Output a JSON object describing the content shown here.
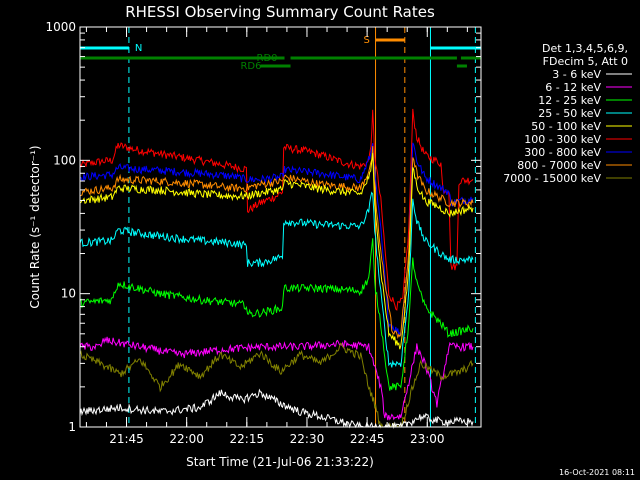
{
  "chart_data": {
    "type": "line",
    "title": "RHESSI Observing Summary Count Rates",
    "xlabel": "Start Time (21-Jul-06 21:33:22)",
    "ylabel": "Count Rate (s⁻¹ detector⁻¹)",
    "y_scale": "log",
    "ylim": [
      1,
      1000
    ],
    "xlim_minutes": [
      0,
      100
    ],
    "x_ticks": [
      {
        "label": "21:45",
        "minute": 11.6
      },
      {
        "label": "22:00",
        "minute": 26.6
      },
      {
        "label": "22:15",
        "minute": 41.6
      },
      {
        "label": "22:30",
        "minute": 56.6
      },
      {
        "label": "22:45",
        "minute": 71.6
      },
      {
        "label": "23:00",
        "minute": 86.6
      }
    ],
    "y_ticks": [
      {
        "label": "1",
        "value": 1
      },
      {
        "label": "10",
        "value": 10
      },
      {
        "label": "100",
        "value": 100
      },
      {
        "label": "1000",
        "value": 1000
      }
    ],
    "legend": {
      "placement": "right",
      "header": [
        "Det 1,3,4,5,6,9,",
        "FDecim 5, Att 0"
      ],
      "entries": [
        {
          "name": "3 - 6 keV",
          "color": "#ffffff"
        },
        {
          "name": "6 - 12 keV",
          "color": "#ff00ff"
        },
        {
          "name": "12 - 25 keV",
          "color": "#00ff00"
        },
        {
          "name": "25 - 50 keV",
          "color": "#00ffff"
        },
        {
          "name": "50 - 100 keV",
          "color": "#ffff00"
        },
        {
          "name": "100 - 300 keV",
          "color": "#ff0000"
        },
        {
          "name": "300 - 800 keV",
          "color": "#0000ff"
        },
        {
          "name": "800 - 7000 keV",
          "color": "#ff8c00"
        },
        {
          "name": "7000 - 15000 keV",
          "color": "#808000"
        }
      ]
    },
    "series": [
      {
        "name": "100 - 300 keV",
        "color": "#ff0000",
        "points": [
          [
            0,
            92
          ],
          [
            5,
            98
          ],
          [
            8,
            100
          ],
          [
            9.5,
            130
          ],
          [
            13,
            122
          ],
          [
            20,
            112
          ],
          [
            30,
            100
          ],
          [
            38,
            90
          ],
          [
            41.5,
            86
          ],
          [
            41.8,
            42
          ],
          [
            45,
            48
          ],
          [
            49,
            54
          ],
          [
            50.5,
            58
          ],
          [
            50.8,
            125
          ],
          [
            56,
            118
          ],
          [
            60,
            110
          ],
          [
            66,
            96
          ],
          [
            70,
            90
          ],
          [
            72,
            98
          ],
          [
            72.8,
            160
          ],
          [
            73,
            230
          ],
          [
            73.5,
            110
          ],
          [
            75,
            50
          ],
          [
            77,
            10
          ],
          [
            79,
            8
          ],
          [
            80.5,
            9
          ],
          [
            82,
            30
          ],
          [
            83,
            230
          ],
          [
            84,
            150
          ],
          [
            86,
            110
          ],
          [
            90,
            95
          ],
          [
            90.5,
            60
          ],
          [
            92,
            60
          ],
          [
            92.5,
            16
          ],
          [
            94,
            16
          ],
          [
            94.5,
            70
          ],
          [
            98,
            72
          ]
        ]
      },
      {
        "name": "300 - 800 keV",
        "color": "#0000ff",
        "points": [
          [
            0,
            75
          ],
          [
            8,
            78
          ],
          [
            9.5,
            88
          ],
          [
            20,
            84
          ],
          [
            30,
            80
          ],
          [
            38,
            76
          ],
          [
            41.5,
            72
          ],
          [
            45,
            72
          ],
          [
            50.5,
            75
          ],
          [
            51,
            85
          ],
          [
            60,
            80
          ],
          [
            70,
            72
          ],
          [
            72.5,
            110
          ],
          [
            73,
            140
          ],
          [
            73.5,
            80
          ],
          [
            75,
            30
          ],
          [
            77,
            6
          ],
          [
            80,
            5
          ],
          [
            82,
            20
          ],
          [
            83,
            140
          ],
          [
            84,
            100
          ],
          [
            86,
            75
          ],
          [
            90,
            62
          ],
          [
            92,
            58
          ],
          [
            92.5,
            48
          ],
          [
            98,
            52
          ]
        ]
      },
      {
        "name": "800 - 7000 keV",
        "color": "#ff8c00",
        "points": [
          [
            0,
            58
          ],
          [
            8,
            62
          ],
          [
            9.5,
            72
          ],
          [
            20,
            70
          ],
          [
            30,
            66
          ],
          [
            38,
            62
          ],
          [
            41.5,
            62
          ],
          [
            45,
            66
          ],
          [
            50.5,
            70
          ],
          [
            51,
            75
          ],
          [
            60,
            66
          ],
          [
            70,
            62
          ],
          [
            72.5,
            90
          ],
          [
            73,
            120
          ],
          [
            73.5,
            60
          ],
          [
            75,
            20
          ],
          [
            78,
            5
          ],
          [
            80,
            5
          ],
          [
            82,
            20
          ],
          [
            83,
            110
          ],
          [
            84,
            80
          ],
          [
            86,
            60
          ],
          [
            90,
            52
          ],
          [
            92,
            48
          ],
          [
            98,
            48
          ]
        ]
      },
      {
        "name": "50 - 100 keV",
        "color": "#ffff00",
        "points": [
          [
            0,
            50
          ],
          [
            8,
            53
          ],
          [
            9.5,
            62
          ],
          [
            20,
            60
          ],
          [
            30,
            56
          ],
          [
            38,
            54
          ],
          [
            41.5,
            54
          ],
          [
            45,
            57
          ],
          [
            50.5,
            61
          ],
          [
            51,
            68
          ],
          [
            60,
            61
          ],
          [
            70,
            56
          ],
          [
            72.5,
            80
          ],
          [
            73,
            110
          ],
          [
            73.5,
            50
          ],
          [
            75,
            15
          ],
          [
            77,
            5
          ],
          [
            80,
            4
          ],
          [
            82,
            15
          ],
          [
            83,
            90
          ],
          [
            84,
            65
          ],
          [
            86,
            50
          ],
          [
            90,
            44
          ],
          [
            92,
            40
          ],
          [
            98,
            44
          ]
        ]
      },
      {
        "name": "25 - 50 keV",
        "color": "#00ffff",
        "points": [
          [
            0,
            24
          ],
          [
            8,
            25
          ],
          [
            9.5,
            30
          ],
          [
            20,
            27
          ],
          [
            30,
            25
          ],
          [
            38,
            24
          ],
          [
            41.5,
            23
          ],
          [
            41.8,
            17
          ],
          [
            45,
            17
          ],
          [
            50.5,
            19
          ],
          [
            50.8,
            35
          ],
          [
            60,
            33
          ],
          [
            70,
            32
          ],
          [
            72,
            42
          ],
          [
            73,
            60
          ],
          [
            73.5,
            30
          ],
          [
            75,
            10
          ],
          [
            77,
            3
          ],
          [
            80,
            3
          ],
          [
            82,
            10
          ],
          [
            83,
            52
          ],
          [
            84,
            35
          ],
          [
            86,
            25
          ],
          [
            90,
            20
          ],
          [
            92,
            18
          ],
          [
            98,
            18
          ]
        ]
      },
      {
        "name": "12 - 25 keV",
        "color": "#00ff00",
        "points": [
          [
            0,
            8.5
          ],
          [
            8,
            9
          ],
          [
            9.5,
            12
          ],
          [
            20,
            10
          ],
          [
            30,
            9
          ],
          [
            38,
            8.5
          ],
          [
            41.5,
            8.2
          ],
          [
            41.8,
            7
          ],
          [
            45,
            7.2
          ],
          [
            50.5,
            7.8
          ],
          [
            50.8,
            11
          ],
          [
            60,
            11
          ],
          [
            70,
            10.5
          ],
          [
            72,
            13
          ],
          [
            73,
            25
          ],
          [
            73.5,
            12
          ],
          [
            75,
            6
          ],
          [
            77,
            2
          ],
          [
            80,
            2
          ],
          [
            82,
            6
          ],
          [
            83,
            18
          ],
          [
            84,
            12
          ],
          [
            86,
            8
          ],
          [
            90,
            6
          ],
          [
            92,
            5
          ],
          [
            98,
            5.5
          ]
        ]
      },
      {
        "name": "6 - 12 keV",
        "color": "#ff00ff",
        "points": [
          [
            0,
            4
          ],
          [
            5,
            4
          ],
          [
            6,
            4.5
          ],
          [
            15,
            4
          ],
          [
            25,
            3.5
          ],
          [
            35,
            3.8
          ],
          [
            45,
            4
          ],
          [
            55,
            4
          ],
          [
            65,
            4.2
          ],
          [
            72,
            4
          ],
          [
            75,
            2
          ],
          [
            76,
            1.2
          ],
          [
            80,
            1.2
          ],
          [
            84,
            4
          ],
          [
            86,
            3
          ],
          [
            89,
            1.5
          ],
          [
            92,
            4
          ],
          [
            98,
            4
          ]
        ]
      },
      {
        "name": "7000 - 15000 keV",
        "color": "#808000",
        "points": [
          [
            0,
            3.5
          ],
          [
            5,
            3
          ],
          [
            10,
            2.5
          ],
          [
            15,
            3.2
          ],
          [
            20,
            2
          ],
          [
            25,
            3
          ],
          [
            30,
            2.4
          ],
          [
            35,
            3.5
          ],
          [
            40,
            2.8
          ],
          [
            45,
            3.6
          ],
          [
            50,
            2.6
          ],
          [
            55,
            3.5
          ],
          [
            60,
            3
          ],
          [
            65,
            4
          ],
          [
            70,
            3.4
          ],
          [
            72,
            2
          ],
          [
            73.5,
            1.5
          ],
          [
            75,
            1
          ],
          [
            80,
            1
          ],
          [
            83,
            2
          ],
          [
            85,
            3
          ],
          [
            90,
            2.4
          ],
          [
            95,
            2.6
          ],
          [
            98,
            3
          ]
        ]
      },
      {
        "name": "3 - 6 keV",
        "color": "#ffffff",
        "points": [
          [
            0,
            1.3
          ],
          [
            10,
            1.4
          ],
          [
            20,
            1.3
          ],
          [
            30,
            1.4
          ],
          [
            35,
            1.8
          ],
          [
            40,
            1.6
          ],
          [
            45,
            1.8
          ],
          [
            50,
            1.5
          ],
          [
            55,
            1.3
          ],
          [
            60,
            1.2
          ],
          [
            70,
            1
          ],
          [
            80,
            1
          ],
          [
            85,
            1.2
          ],
          [
            90,
            1.1
          ],
          [
            98,
            1.1
          ]
        ]
      }
    ],
    "state_bars": [
      {
        "name": "N",
        "color": "#00ffff",
        "label": "N",
        "segments": [
          [
            0,
            12.2
          ],
          [
            87.4,
            100
          ]
        ],
        "row": "upper"
      },
      {
        "name": "S",
        "color": "#ff8c00",
        "label": "S",
        "segments": [
          [
            73.7,
            81.0
          ]
        ],
        "row": "top"
      },
      {
        "name": "RD0",
        "color": "#008000",
        "label": "RD0",
        "segments": [
          [
            0,
            51
          ],
          [
            52.5,
            94
          ],
          [
            95,
            100
          ]
        ],
        "row": "main"
      },
      {
        "name": "RD6",
        "color": "#008000",
        "label": "RD6",
        "segments": [
          [
            45,
            52.5
          ],
          [
            94,
            96.5
          ]
        ],
        "row": "lower"
      }
    ],
    "vlines": [
      {
        "minute": 0,
        "color": "#00ffff",
        "style": "solid"
      },
      {
        "minute": 12.2,
        "color": "#00ffff",
        "style": "dashed"
      },
      {
        "minute": 73.7,
        "color": "#ff8c00",
        "style": "solid"
      },
      {
        "minute": 81.0,
        "color": "#ff8c00",
        "style": "dashed"
      },
      {
        "minute": 87.4,
        "color": "#00ffff",
        "style": "solid"
      },
      {
        "minute": 98.6,
        "color": "#00ffff",
        "style": "dashed"
      }
    ],
    "timestamp": "16-Oct-2021 08:11"
  }
}
